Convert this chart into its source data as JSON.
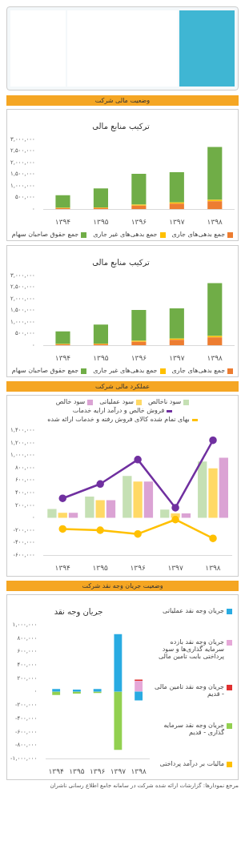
{
  "chart_data": [
    {
      "type": "bar",
      "subtitle": "وضعیت مالی شرکت",
      "title": "ترکیب منابع مالی",
      "categories": [
        "۱۳۹۴",
        "۱۳۹۵",
        "۱۳۹۶",
        "۱۳۹۷",
        "۱۳۹۸"
      ],
      "stacked": true,
      "series": [
        {
          "name": "جمع بدهی‌های جاری",
          "color": "#ed7d31",
          "values": [
            40000,
            50000,
            150000,
            240000,
            340000
          ]
        },
        {
          "name": "جمع بدهی‌های غیر جاری",
          "color": "#ffc000",
          "values": [
            20000,
            30000,
            50000,
            50000,
            60000
          ]
        },
        {
          "name": "جمع حقوق صاحبان سهام",
          "color": "#70ad47",
          "values": [
            540000,
            810000,
            1320000,
            1300000,
            2270000
          ]
        }
      ],
      "ylim": [
        0,
        3000000
      ],
      "yticks": [
        {
          "value": 0,
          "label": "۰"
        },
        {
          "value": 500000,
          "label": "۵۰۰,۰۰۰"
        },
        {
          "value": 1000000,
          "label": "۱,۰۰۰,۰۰۰"
        },
        {
          "value": 1500000,
          "label": "۱,۵۰۰,۰۰۰"
        },
        {
          "value": 2000000,
          "label": "۲,۰۰۰,۰۰۰"
        },
        {
          "value": 2500000,
          "label": "۲,۵۰۰,۰۰۰"
        },
        {
          "value": 3000000,
          "label": "۳,۰۰۰,۰۰۰"
        }
      ],
      "legend": "bottom",
      "grid": false
    },
    {
      "type": "bar",
      "title": "ترکیب منابع مالی",
      "categories": [
        "۱۳۹۴",
        "۱۳۹۵",
        "۱۳۹۶",
        "۱۳۹۷",
        "۱۳۹۸"
      ],
      "stacked": true,
      "series": [
        {
          "name": "جمع بدهی‌های جاری",
          "color": "#ed7d31",
          "values": [
            40000,
            50000,
            150000,
            240000,
            340000
          ]
        },
        {
          "name": "جمع بدهی‌های غیر جاری",
          "color": "#ffc000",
          "values": [
            20000,
            30000,
            50000,
            50000,
            60000
          ]
        },
        {
          "name": "جمع حقوق صاحبان سهام",
          "color": "#70ad47",
          "values": [
            540000,
            810000,
            1320000,
            1300000,
            2270000
          ]
        }
      ],
      "ylim": [
        0,
        3000000
      ],
      "yticks": [
        {
          "value": 0,
          "label": "۰"
        },
        {
          "value": 500000,
          "label": "۵۰۰,۰۰۰"
        },
        {
          "value": 1000000,
          "label": "۱,۰۰۰,۰۰۰"
        },
        {
          "value": 1500000,
          "label": "۱,۵۰۰,۰۰۰"
        },
        {
          "value": 2000000,
          "label": "۲,۰۰۰,۰۰۰"
        },
        {
          "value": 2500000,
          "label": "۲,۵۰۰,۰۰۰"
        },
        {
          "value": 3000000,
          "label": "۳,۰۰۰,۰۰۰"
        }
      ],
      "legend": "bottom",
      "grid": false
    },
    {
      "type": "bar",
      "subtitle": "عملکرد مالی شرکت",
      "categories": [
        "۱۳۹۴",
        "۱۳۹۵",
        "۱۳۹۶",
        "۱۳۹۷",
        "۱۳۹۸"
      ],
      "series": [
        {
          "name": "سود ناخالص",
          "color": "#c5e0b4",
          "values": [
            140000,
            340000,
            670000,
            130000,
            900000
          ]
        },
        {
          "name": "سود عملیاتی",
          "color": "#ffd966",
          "values": [
            80000,
            280000,
            580000,
            70000,
            790000
          ]
        },
        {
          "name": "سود خالص",
          "color": "#dba3d4",
          "values": [
            80000,
            280000,
            580000,
            70000,
            960000
          ]
        },
        {
          "name": "فروش خالص و درآمد ارایه خدمات",
          "type": "line",
          "color": "#7030a0",
          "values": [
            310000,
            540000,
            930000,
            160000,
            1240000
          ]
        },
        {
          "name": "بهای تمام شده کالای فروش رفته و خدمات ارائه شده",
          "type": "line",
          "color": "#ffc000",
          "values": [
            -180000,
            -200000,
            -260000,
            -30000,
            -330000
          ]
        }
      ],
      "ylim": [
        -600000,
        1400000
      ],
      "yticks": [
        {
          "value": -600000,
          "label": "-۶۰۰,۰۰۰"
        },
        {
          "value": -400000,
          "label": "-۴۰۰,۰۰۰"
        },
        {
          "value": -200000,
          "label": "-۲۰۰,۰۰۰"
        },
        {
          "value": 0,
          "label": "۰"
        },
        {
          "value": 200000,
          "label": "۲۰۰,۰۰۰"
        },
        {
          "value": 400000,
          "label": "۴۰۰,۰۰۰"
        },
        {
          "value": 600000,
          "label": "۶۰۰,۰۰۰"
        },
        {
          "value": 800000,
          "label": "۸۰۰,۰۰۰"
        },
        {
          "value": 1000000,
          "label": "۱,۰۰۰,۰۰۰"
        },
        {
          "value": 1200000,
          "label": "۱,۲۰۰,۰۰۰"
        },
        {
          "value": 1400000,
          "label": "۱,۴۰۰,۰۰۰"
        }
      ],
      "marker": "circle",
      "legend": "top",
      "grid": false
    },
    {
      "type": "bar",
      "subtitle": "وضعیت جریان وجه نقد شرکت",
      "title": "جریان وجه نقد",
      "categories": [
        "۱۳۹۴",
        "۱۳۹۵",
        "۱۳۹۶",
        "۱۳۹۷",
        "۱۳۹۸"
      ],
      "stacked": true,
      "series": [
        {
          "name": "جریان وجه نقد عملیاتی",
          "color": "#29abe2",
          "values": [
            40000,
            30000,
            40000,
            860000,
            -130000
          ]
        },
        {
          "name": "جریان وجه نقد بازده سرمایه گذاری‌ها و سود پرداختی بابت تامین مالی",
          "color": "#e6a8d8",
          "values": [
            null,
            null,
            null,
            null,
            160000
          ]
        },
        {
          "name": "جریان وجه نقد تامین مالی - قدیم",
          "color": "#e03030",
          "values": [
            null,
            null,
            null,
            null,
            20000
          ]
        },
        {
          "name": "جریان وجه نقد سرمایه گذاری - قدیم",
          "color": "#92d050",
          "values": [
            -50000,
            -30000,
            -20000,
            -870000,
            null
          ]
        },
        {
          "name": "مالیات بر درآمد پرداختی",
          "color": "#ffc000",
          "values": [
            null,
            null,
            null,
            null,
            null
          ]
        }
      ],
      "ylim": [
        -1000000,
        1000000
      ],
      "yticks": [
        {
          "value": -1000000,
          "label": "-۱,۰۰۰,۰۰۰"
        },
        {
          "value": -800000,
          "label": "-۸۰۰,۰۰۰"
        },
        {
          "value": -600000,
          "label": "-۶۰۰,۰۰۰"
        },
        {
          "value": -400000,
          "label": "-۴۰۰,۰۰۰"
        },
        {
          "value": -200000,
          "label": "-۲۰۰,۰۰۰"
        },
        {
          "value": 0,
          "label": "۰"
        },
        {
          "value": 200000,
          "label": "۲۰۰,۰۰۰"
        },
        {
          "value": 400000,
          "label": "۴۰۰,۰۰۰"
        },
        {
          "value": 600000,
          "label": "۶۰۰,۰۰۰"
        },
        {
          "value": 800000,
          "label": "۸۰۰,۰۰۰"
        },
        {
          "value": 1000000,
          "label": "۱,۰۰۰,۰۰۰"
        }
      ],
      "legend": "right",
      "grid": false,
      "annotations": [
        "مرجع نمودارها: گزارشات ارائه شده شرکت در سامانه جامع اطلاع رسانی ناشران"
      ]
    }
  ]
}
